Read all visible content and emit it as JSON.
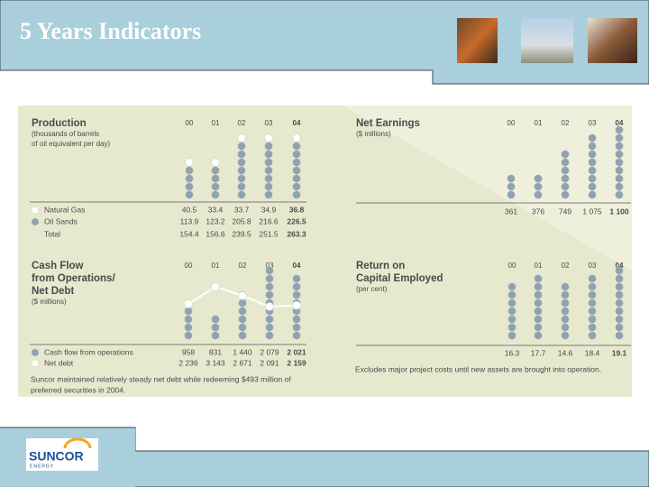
{
  "title": "5 Years Indicators",
  "logo": {
    "name": "SUNCOR",
    "sub": "ENERGY"
  },
  "chart_data": [
    {
      "type": "dot-stack",
      "title": [
        "Production"
      ],
      "subtitle": [
        "(thousands of barrels",
        "of oil equivalent per day)"
      ],
      "categories": [
        "00",
        "01",
        "02",
        "03",
        "04"
      ],
      "series": [
        {
          "name": "Natural Gas",
          "color": "#ffffff",
          "values": [
            40.5,
            33.4,
            33.7,
            34.9,
            36.8
          ]
        },
        {
          "name": "Oil Sands",
          "color": "#8ea2b4",
          "values": [
            113.9,
            123.2,
            205.8,
            216.6,
            226.5
          ]
        }
      ],
      "total": {
        "name": "Total",
        "values": [
          154.4,
          156.6,
          239.5,
          251.5,
          263.3
        ]
      }
    },
    {
      "type": "dot-stack",
      "title": [
        "Net Earnings"
      ],
      "subtitle": [
        "($ millions)"
      ],
      "categories": [
        "00",
        "01",
        "02",
        "03",
        "04"
      ],
      "series": [
        {
          "color": "#8ea2b4",
          "values": [
            361,
            376,
            749,
            1075,
            1100
          ],
          "value_labels": [
            "361",
            "376",
            "749",
            "1 075",
            "1 100"
          ]
        }
      ]
    },
    {
      "type": "dot-stack",
      "title": [
        "Cash Flow",
        "from Operations/",
        "Net Debt"
      ],
      "subtitle": [
        "($ millions)"
      ],
      "categories": [
        "00",
        "01",
        "02",
        "03",
        "04"
      ],
      "series": [
        {
          "name": "Cash flow from operations",
          "color": "#8ea2b4",
          "values": [
            958,
            831,
            1440,
            2079,
            2021
          ],
          "value_labels": [
            "958",
            "831",
            "1 440",
            "2 079",
            "2 021"
          ]
        },
        {
          "name": "Net debt",
          "type": "line",
          "color": "#ffffff",
          "values": [
            2236,
            3143,
            2671,
            2091,
            2159
          ],
          "value_labels": [
            "2 236",
            "3 143",
            "2 671",
            "2 091",
            "2 159"
          ]
        }
      ],
      "footnote": [
        "Suncor maintained relatively steady net debt while redeeming $493 million of",
        "preferred securities in 2004."
      ]
    },
    {
      "type": "dot-stack",
      "title": [
        "Return on",
        "Capital Employed"
      ],
      "subtitle": [
        "(per cent)"
      ],
      "categories": [
        "00",
        "01",
        "02",
        "03",
        "04"
      ],
      "series": [
        {
          "color": "#8ea2b4",
          "values": [
            16.3,
            17.7,
            14.6,
            18.4,
            19.1
          ]
        }
      ],
      "footnote": [
        "Excludes major project costs until new assets are brought into operation."
      ]
    }
  ]
}
